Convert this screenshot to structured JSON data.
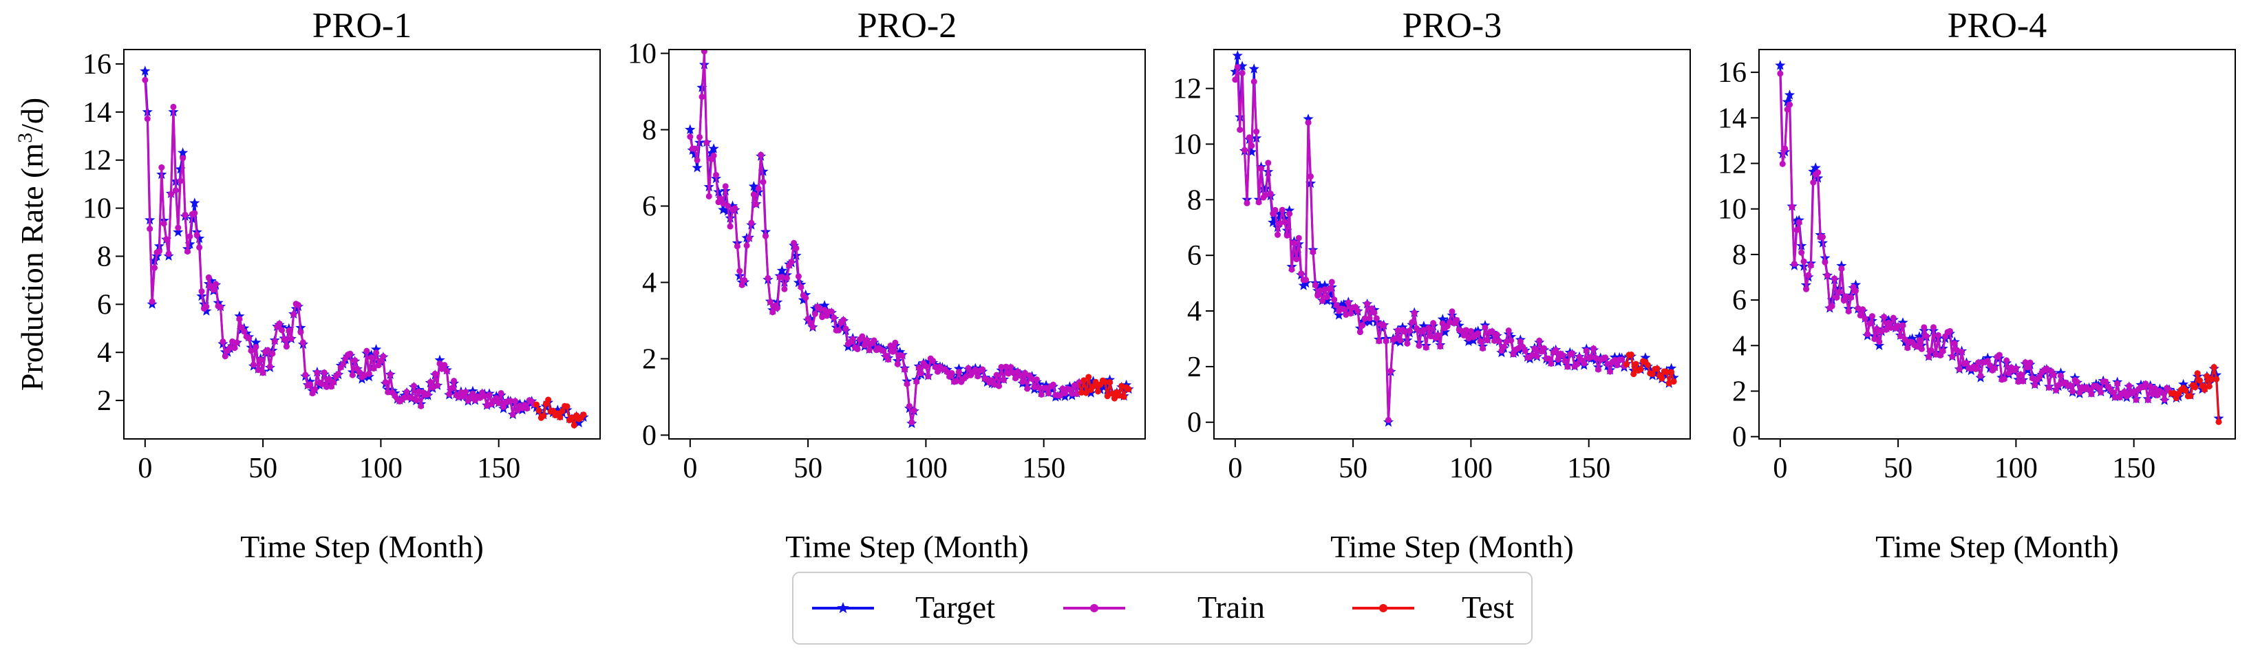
{
  "figure": {
    "ylabel_main": "Production Rate (m",
    "ylabel_sup": "3",
    "ylabel_end": "/d)",
    "xlabel": "Time Step (Month)"
  },
  "legend": {
    "entries": [
      {
        "label": "Target",
        "color": "#1010ee",
        "marker": "star"
      },
      {
        "label": "Train",
        "color": "#c010c0",
        "marker": "dot"
      },
      {
        "label": "Test",
        "color": "#ee1111",
        "marker": "dot"
      }
    ]
  },
  "chart_data": [
    {
      "type": "line",
      "title": "PRO-1",
      "xlabel": "Time Step (Month)",
      "ylabel": "Production Rate (m3/d)",
      "xlim": [
        -9,
        193
      ],
      "ylim": [
        0.4,
        16.6
      ],
      "xticks": [
        0,
        50,
        100,
        150
      ],
      "yticks": [
        2,
        4,
        6,
        8,
        10,
        12,
        14,
        16
      ],
      "train_end": 166,
      "n_points": 187,
      "anchors": [
        [
          0,
          15.7
        ],
        [
          1,
          14.0
        ],
        [
          3,
          6.0
        ],
        [
          5,
          8.0
        ],
        [
          7,
          11.4
        ],
        [
          10,
          8.0
        ],
        [
          12,
          14.0
        ],
        [
          14,
          9.0
        ],
        [
          16,
          12.3
        ],
        [
          19,
          8.5
        ],
        [
          22,
          9.0
        ],
        [
          25,
          6.0
        ],
        [
          30,
          6.8
        ],
        [
          35,
          4.0
        ],
        [
          40,
          5.5
        ],
        [
          45,
          4.2
        ],
        [
          50,
          3.2
        ],
        [
          55,
          4.5
        ],
        [
          60,
          4.4
        ],
        [
          65,
          5.9
        ],
        [
          68,
          3.0
        ],
        [
          75,
          2.7
        ],
        [
          80,
          2.8
        ],
        [
          85,
          3.7
        ],
        [
          90,
          3.3
        ],
        [
          100,
          3.6
        ],
        [
          105,
          2.4
        ],
        [
          110,
          2.2
        ],
        [
          120,
          2.2
        ],
        [
          126,
          3.4
        ],
        [
          130,
          2.4
        ],
        [
          140,
          2.0
        ],
        [
          150,
          1.9
        ],
        [
          160,
          1.6
        ],
        [
          166,
          1.7
        ],
        [
          175,
          1.6
        ],
        [
          186,
          1.3
        ]
      ],
      "noise": 1.0,
      "seed": 11,
      "series": [
        {
          "name": "Target",
          "role": "target"
        },
        {
          "name": "Train",
          "role": "train"
        },
        {
          "name": "Test",
          "role": "test"
        }
      ]
    },
    {
      "type": "line",
      "title": "PRO-2",
      "xlabel": "Time Step (Month)",
      "ylabel": "Production Rate (m3/d)",
      "xlim": [
        -9,
        193
      ],
      "ylim": [
        -0.1,
        10.1
      ],
      "xticks": [
        0,
        50,
        100,
        150
      ],
      "yticks": [
        0,
        2,
        4,
        6,
        8,
        10
      ],
      "train_end": 166,
      "n_points": 187,
      "anchors": [
        [
          0,
          8.0
        ],
        [
          3,
          7.0
        ],
        [
          5,
          9.1
        ],
        [
          6,
          9.7
        ],
        [
          8,
          6.5
        ],
        [
          10,
          7.5
        ],
        [
          14,
          5.9
        ],
        [
          18,
          6.0
        ],
        [
          22,
          4.0
        ],
        [
          26,
          5.5
        ],
        [
          30,
          7.3
        ],
        [
          34,
          3.5
        ],
        [
          40,
          4.0
        ],
        [
          45,
          4.7
        ],
        [
          50,
          3.0
        ],
        [
          60,
          3.2
        ],
        [
          70,
          2.3
        ],
        [
          80,
          2.3
        ],
        [
          90,
          2.1
        ],
        [
          94,
          0.3
        ],
        [
          97,
          1.8
        ],
        [
          110,
          1.6
        ],
        [
          120,
          1.7
        ],
        [
          130,
          1.5
        ],
        [
          140,
          1.6
        ],
        [
          150,
          1.2
        ],
        [
          160,
          1.2
        ],
        [
          166,
          1.2
        ],
        [
          175,
          1.3
        ],
        [
          186,
          1.2
        ]
      ],
      "noise": 0.6,
      "seed": 23,
      "series": [
        {
          "name": "Target",
          "role": "target"
        },
        {
          "name": "Train",
          "role": "train"
        },
        {
          "name": "Test",
          "role": "test"
        }
      ]
    },
    {
      "type": "line",
      "title": "PRO-3",
      "xlabel": "Time Step (Month)",
      "ylabel": "Production Rate (m3/d)",
      "xlim": [
        -9,
        193
      ],
      "ylim": [
        -0.6,
        13.4
      ],
      "xticks": [
        0,
        50,
        100,
        150
      ],
      "yticks": [
        0,
        2,
        4,
        6,
        8,
        10,
        12
      ],
      "train_end": 166,
      "n_points": 187,
      "anchors": [
        [
          0,
          12.6
        ],
        [
          3,
          12.8
        ],
        [
          5,
          8.0
        ],
        [
          8,
          12.7
        ],
        [
          10,
          8.0
        ],
        [
          14,
          9.0
        ],
        [
          18,
          7.0
        ],
        [
          25,
          6.5
        ],
        [
          30,
          5.0
        ],
        [
          31,
          10.9
        ],
        [
          34,
          5.0
        ],
        [
          40,
          4.6
        ],
        [
          45,
          4.2
        ],
        [
          50,
          4.0
        ],
        [
          60,
          3.6
        ],
        [
          64,
          3.0
        ],
        [
          65,
          0.0
        ],
        [
          67,
          3.0
        ],
        [
          75,
          3.5
        ],
        [
          85,
          3.0
        ],
        [
          90,
          3.6
        ],
        [
          100,
          3.2
        ],
        [
          110,
          3.0
        ],
        [
          120,
          2.6
        ],
        [
          130,
          2.6
        ],
        [
          140,
          2.3
        ],
        [
          150,
          2.3
        ],
        [
          160,
          2.1
        ],
        [
          166,
          2.1
        ],
        [
          175,
          2.0
        ],
        [
          186,
          1.6
        ]
      ],
      "noise": 0.9,
      "seed": 37,
      "series": [
        {
          "name": "Target",
          "role": "target"
        },
        {
          "name": "Train",
          "role": "train"
        },
        {
          "name": "Test",
          "role": "test"
        }
      ]
    },
    {
      "type": "line",
      "title": "PRO-4",
      "xlabel": "Time Step (Month)",
      "ylabel": "Production Rate (m3/d)",
      "xlim": [
        -9,
        193
      ],
      "ylim": [
        -0.1,
        17.0
      ],
      "xticks": [
        0,
        50,
        100,
        150
      ],
      "yticks": [
        0,
        2,
        4,
        6,
        8,
        10,
        12,
        14,
        16
      ],
      "train_end": 166,
      "n_points": 187,
      "anchors": [
        [
          0,
          16.3
        ],
        [
          2,
          12.5
        ],
        [
          4,
          15.0
        ],
        [
          6,
          7.5
        ],
        [
          8,
          9.5
        ],
        [
          12,
          7.0
        ],
        [
          15,
          11.8
        ],
        [
          18,
          8.5
        ],
        [
          22,
          6.0
        ],
        [
          26,
          7.5
        ],
        [
          30,
          6.2
        ],
        [
          35,
          5.5
        ],
        [
          40,
          4.4
        ],
        [
          50,
          4.8
        ],
        [
          60,
          4.0
        ],
        [
          70,
          4.3
        ],
        [
          80,
          3.0
        ],
        [
          90,
          3.0
        ],
        [
          100,
          3.0
        ],
        [
          110,
          2.6
        ],
        [
          120,
          2.4
        ],
        [
          130,
          2.1
        ],
        [
          140,
          2.1
        ],
        [
          150,
          2.0
        ],
        [
          160,
          1.9
        ],
        [
          166,
          1.9
        ],
        [
          175,
          2.2
        ],
        [
          185,
          2.7
        ],
        [
          186,
          0.8
        ]
      ],
      "noise": 1.0,
      "seed": 53,
      "series": [
        {
          "name": "Target",
          "role": "target"
        },
        {
          "name": "Train",
          "role": "train"
        },
        {
          "name": "Test",
          "role": "test"
        }
      ]
    }
  ]
}
